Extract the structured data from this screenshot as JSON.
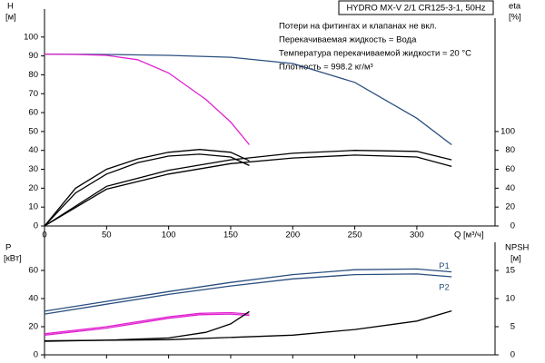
{
  "chart_data": [
    {
      "type": "line",
      "title": "HYDRO MX-V 2/1 CR125-3-1, 50Hz",
      "notes": [
        "Потери на фитингах и клапанах не вкл.",
        "Перекачиваемая жидкость = Вода",
        "Температура перекачиваемой жидкости = 20 °C",
        "Плотность = 998.2 кг/м³"
      ],
      "ylabel": "H",
      "yunit": "[м]",
      "y2label": "eta",
      "y2unit": "[%]",
      "xlabel": "Q [м³/ч]",
      "xlim": [
        0,
        363
      ],
      "xticks": [
        0,
        50,
        100,
        150,
        200,
        250,
        300
      ],
      "ylim": [
        0,
        110
      ],
      "yticks": [
        0,
        10,
        20,
        30,
        40,
        50,
        60,
        70,
        80,
        90,
        100
      ],
      "y2lim": [
        0,
        220
      ],
      "y2ticks": [
        0,
        20,
        40,
        60,
        80,
        100
      ],
      "series": [
        {
          "color": "#2a4f7f",
          "x": [
            0,
            50,
            100,
            150,
            200,
            250,
            300,
            328
          ],
          "values": [
            91,
            90.8,
            90.3,
            89.3,
            86,
            76,
            57,
            43
          ]
        },
        {
          "color": "#e020d0",
          "x": [
            0,
            25,
            50,
            75,
            100,
            130,
            150,
            165
          ],
          "values": [
            91,
            90.8,
            90.3,
            88,
            81,
            67,
            55,
            43
          ]
        },
        {
          "color": "#000000",
          "axis": "y2",
          "x": [
            0,
            25,
            50,
            75,
            100,
            125,
            150,
            165
          ],
          "values": [
            0,
            35,
            55,
            67,
            74,
            76,
            73,
            64
          ]
        },
        {
          "color": "#000000",
          "axis": "y2",
          "x": [
            0,
            25,
            50,
            75,
            100,
            125,
            150,
            165
          ],
          "values": [
            0,
            40,
            60,
            71,
            78,
            81,
            78,
            69
          ]
        },
        {
          "color": "#000000",
          "axis": "y2",
          "x": [
            0,
            50,
            100,
            150,
            200,
            250,
            300,
            328
          ],
          "values": [
            0,
            39,
            55,
            66,
            72,
            75,
            73,
            63
          ]
        },
        {
          "color": "#000000",
          "axis": "y2",
          "x": [
            0,
            50,
            100,
            150,
            200,
            250,
            300,
            328
          ],
          "values": [
            0,
            42,
            59,
            70,
            77,
            80,
            79,
            70
          ]
        }
      ]
    },
    {
      "type": "line",
      "ylabel": "P",
      "yunit": "[кВт]",
      "y2label": "NPSH",
      "y2unit": "[м]",
      "xlim": [
        0,
        363
      ],
      "xticks": [
        0,
        50,
        100,
        150,
        200,
        250,
        300
      ],
      "ylim": [
        0,
        80
      ],
      "yticks": [
        0,
        20,
        40,
        60
      ],
      "y2lim": [
        0,
        20
      ],
      "y2ticks": [
        0,
        5,
        10,
        15
      ],
      "series": [
        {
          "name": "P1",
          "color": "#2a4f7f",
          "x": [
            0,
            50,
            100,
            150,
            200,
            250,
            300,
            328
          ],
          "values": [
            31,
            38,
            45,
            51.5,
            57,
            60.5,
            61,
            59
          ]
        },
        {
          "name": "P2",
          "color": "#2a4f7f",
          "x": [
            0,
            50,
            100,
            150,
            200,
            250,
            300,
            328
          ],
          "values": [
            29,
            36,
            43,
            49,
            54,
            57,
            57.5,
            55.5
          ]
        },
        {
          "color": "#e020d0",
          "x": [
            0,
            50,
            100,
            125,
            150,
            165
          ],
          "values": [
            15,
            20,
            27,
            29.5,
            30,
            29
          ]
        },
        {
          "color": "#e020d0",
          "x": [
            0,
            50,
            100,
            125,
            150,
            165
          ],
          "values": [
            14,
            19,
            26,
            28.5,
            29,
            28
          ]
        },
        {
          "color": "#000000",
          "axis": "y2",
          "x": [
            0,
            50,
            100,
            130,
            150,
            165
          ],
          "values": [
            2.4,
            2.6,
            3,
            4,
            5.5,
            7.7
          ]
        },
        {
          "color": "#000000",
          "axis": "y2",
          "x": [
            0,
            100,
            200,
            250,
            300,
            328
          ],
          "values": [
            2.5,
            2.7,
            3.5,
            4.5,
            6,
            7.8
          ]
        }
      ]
    }
  ]
}
